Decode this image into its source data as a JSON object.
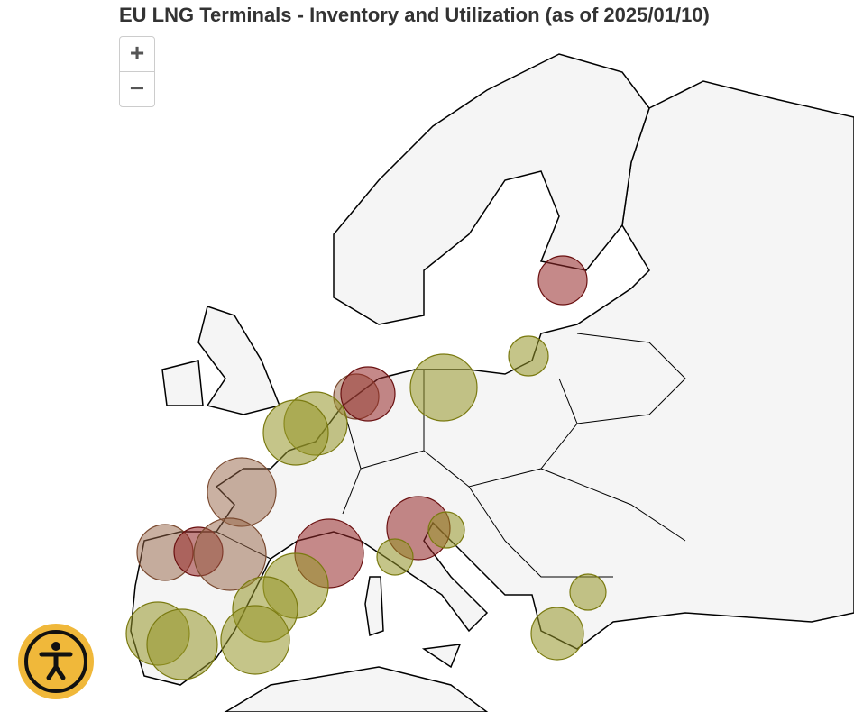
{
  "title": "EU LNG Terminals - Inventory and Utilization (as of 2025/01/10)",
  "zoom_controls": {
    "zoom_in": "+",
    "zoom_out": "−"
  }
}
